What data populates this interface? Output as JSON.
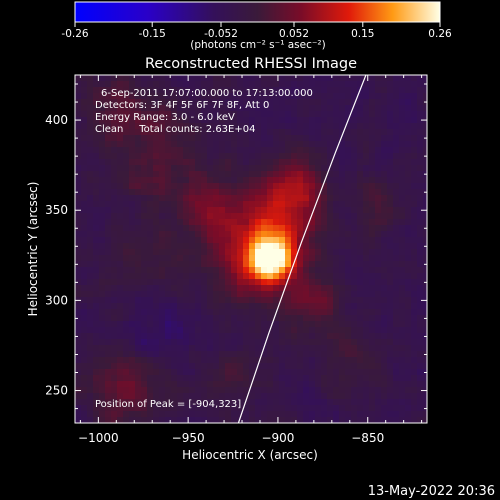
{
  "chart_data": {
    "type": "heatmap",
    "title": "Reconstructed RHESSI Image",
    "xlabel": "Heliocentric X (arcsec)",
    "ylabel": "Heliocentric Y (arcsec)",
    "xlim": [
      -1013,
      -817
    ],
    "ylim": [
      232,
      425
    ],
    "x_ticks": [
      -1000,
      -950,
      -900,
      -850
    ],
    "y_ticks": [
      250,
      300,
      350,
      400
    ],
    "colorbar": {
      "min": -0.26,
      "max": 0.26,
      "ticks": [
        "-0.26",
        "-0.15",
        "-0.052",
        "0.052",
        "0.15",
        "0.26"
      ],
      "tick_values": [
        -0.26,
        -0.15,
        -0.052,
        0.052,
        0.15,
        0.26
      ],
      "label": "(photons cm⁻² s⁻¹ asec⁻²)"
    },
    "annotations": {
      "time_range": "6-Sep-2011 17:07:00.000 to 17:13:00.000",
      "detectors": "Detectors: 3F 4F 5F 6F 7F 8F, Att 0",
      "energy_range": "Energy Range: 3.0 - 6.0 keV",
      "method_counts": "Clean     Total counts: 2.63E+04",
      "peak_position": "Position of Peak = [-904,323]"
    },
    "peak": {
      "x": -904,
      "y": 323,
      "value": 0.26
    },
    "limb_line": [
      [
        -922,
        232
      ],
      [
        -905,
        282
      ],
      [
        -887,
        332
      ],
      [
        -868,
        382
      ],
      [
        -851,
        425
      ]
    ],
    "sources": [
      {
        "x": -904,
        "y": 323,
        "sigma": 9,
        "amp": 0.26
      },
      {
        "x": -900,
        "y": 342,
        "sigma": 16,
        "amp": 0.13
      },
      {
        "x": -935,
        "y": 348,
        "sigma": 13,
        "amp": 0.09
      },
      {
        "x": -890,
        "y": 365,
        "sigma": 11,
        "amp": 0.09
      },
      {
        "x": -920,
        "y": 315,
        "sigma": 15,
        "amp": 0.08
      },
      {
        "x": -880,
        "y": 300,
        "sigma": 12,
        "amp": 0.07
      },
      {
        "x": -965,
        "y": 378,
        "sigma": 18,
        "amp": 0.06
      },
      {
        "x": -990,
        "y": 410,
        "sigma": 14,
        "amp": 0.06
      },
      {
        "x": -975,
        "y": 320,
        "sigma": 14,
        "amp": 0.04
      },
      {
        "x": -985,
        "y": 253,
        "sigma": 14,
        "amp": 0.075
      },
      {
        "x": -925,
        "y": 258,
        "sigma": 10,
        "amp": 0.05
      },
      {
        "x": -845,
        "y": 350,
        "sigma": 10,
        "amp": 0.04
      },
      {
        "x": -860,
        "y": 265,
        "sigma": 12,
        "amp": 0.04
      },
      {
        "x": -965,
        "y": 285,
        "sigma": 14,
        "amp": -0.04
      }
    ]
  },
  "footer": {
    "timestamp": "13-May-2022 20:36"
  }
}
